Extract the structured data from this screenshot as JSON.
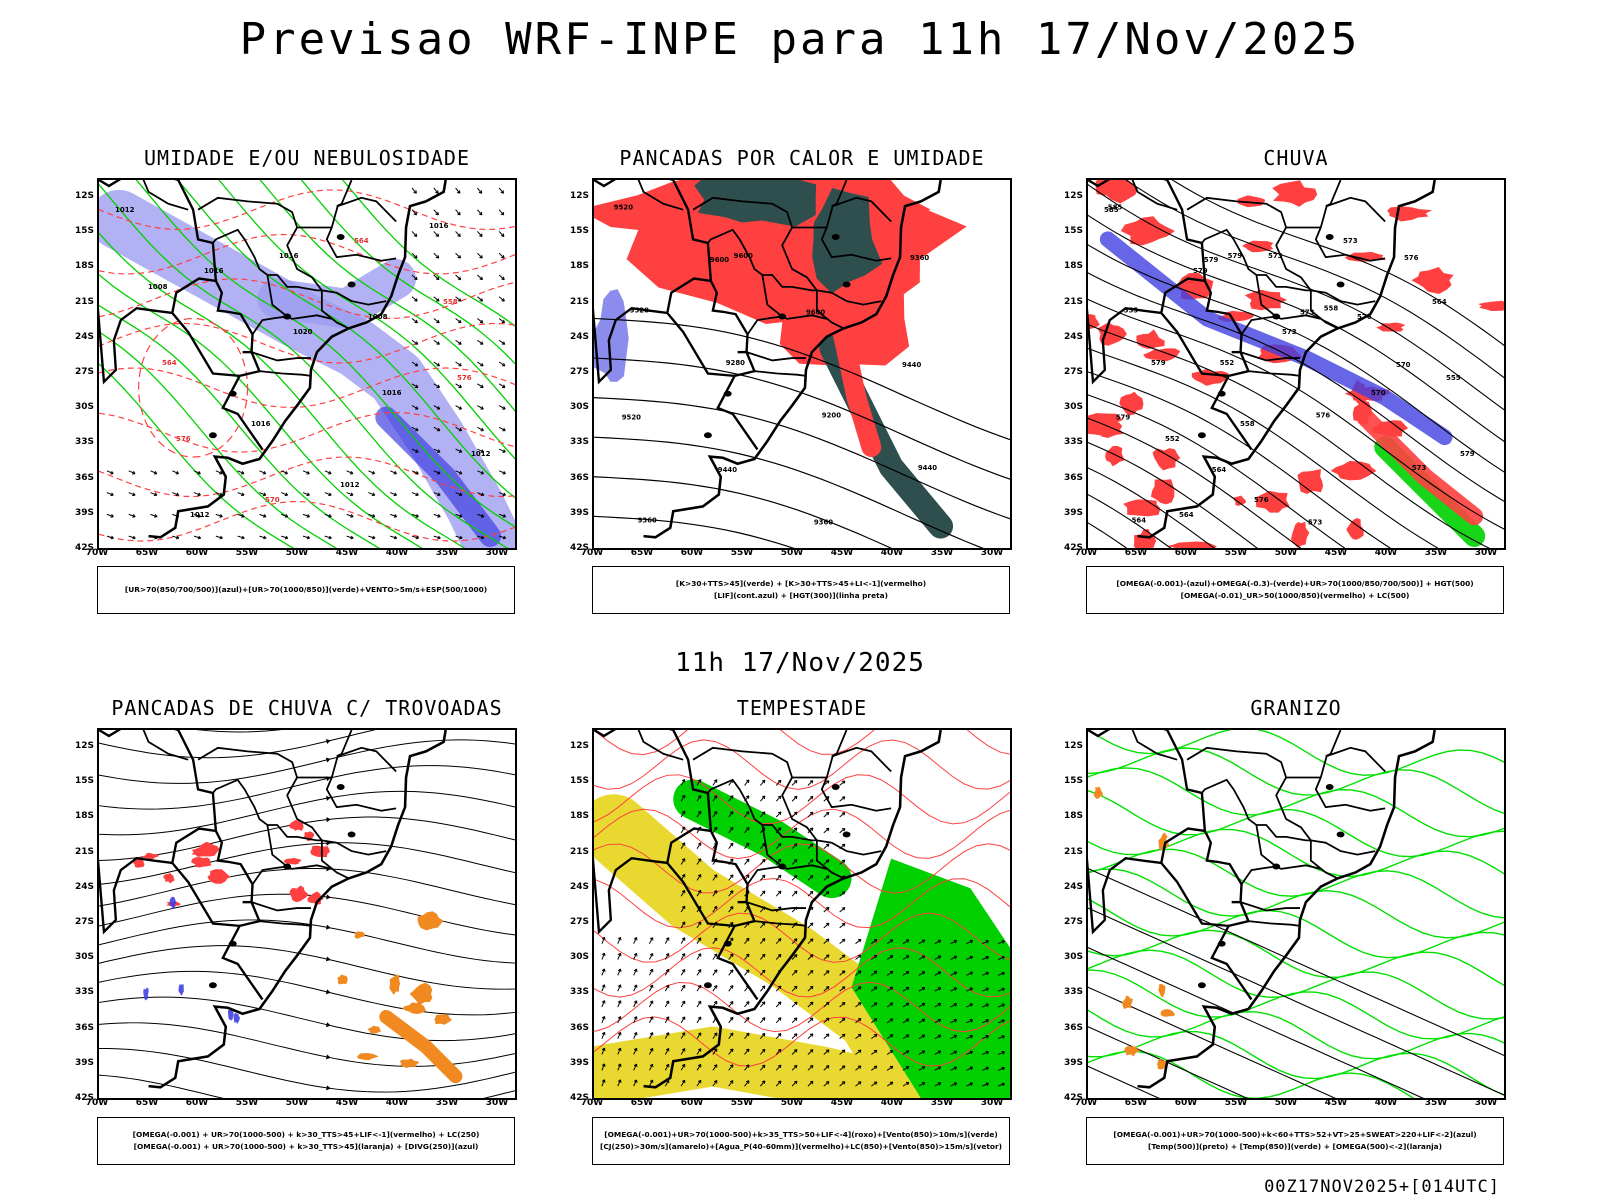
{
  "header": {
    "title": "Previsao WRF-INPE  para 11h 17/Nov/2025"
  },
  "subheader": {
    "time": "11h 17/Nov/2025"
  },
  "footer": {
    "run": "00Z17NOV2025+[014UTC]"
  },
  "axes": {
    "lat_labels": [
      "12S",
      "15S",
      "18S",
      "21S",
      "24S",
      "27S",
      "30S",
      "33S",
      "36S",
      "39S",
      "42S"
    ],
    "lon_labels": [
      "70W",
      "65W",
      "60W",
      "55W",
      "50W",
      "45W",
      "40W",
      "35W",
      "30W"
    ]
  },
  "panels": [
    {
      "title": "UMIDADE E/OU NEBULOSIDADE",
      "legend": [
        "[UR>70(850/700/500)](azul)+[UR>70(1000/850)](verde)+VENTO>5m/s+ESP(500/1000)"
      ],
      "labels": [
        "1012",
        "1016",
        "1020",
        "1016",
        "1012",
        "1012",
        "1016",
        "1008",
        "576",
        "576",
        "570",
        "564",
        "558",
        "564",
        "1016",
        "1012",
        "1016",
        "1008"
      ]
    },
    {
      "title": "PANCADAS POR CALOR E UMIDADE",
      "legend": [
        "[K>30+TTS>45](verde) + [K>30+TTS>45+LI<-1](vermelho)",
        "[LIF](cont.azul) + [HGT(300)](linha preta)"
      ],
      "labels": [
        "9520",
        "9600",
        "9600",
        "9440",
        "9520",
        "9440",
        "9360",
        "9360",
        "9520",
        "9280",
        "9200",
        "9440",
        "9360",
        "9600"
      ]
    },
    {
      "title": "CHUVA",
      "legend": [
        "[OMEGA(-0.001)-(azul)+OMEGA(-0.3)-(verde)+UR>70(1000/850/700/500)] + HGT(500)",
        "[OMEGA(-0.01)_UR>50(1000/850)(vermelho) + LC(500)"
      ],
      "labels": [
        "585",
        "579",
        "573",
        "570",
        "579",
        "564",
        "573",
        "576",
        "555",
        "552",
        "576",
        "573",
        "564",
        "579",
        "558"
      ]
    },
    {
      "title": "PANCADAS DE CHUVA C/ TROVOADAS",
      "legend": [
        "[OMEGA(-0.001) + UR>70(1000-500) + k>30_TTS>45+LIF<-1](vermelho) + LC(250)",
        "[OMEGA(-0.001) + UR>70(1000-500) + k>30_TTS>45](laranja) + [DIVG(250)](azul)"
      ],
      "labels": []
    },
    {
      "title": "TEMPESTADE",
      "legend": [
        "[OMEGA(-0.001)+UR>70(1000-500)+k>35_TTS>50+LIF<-4](roxo)+[Vento(850)>10m/s](verde)",
        "[CJ(250)>30m/s](amarelo)+[Agua_P(40-60mm)](vermelho)+LC(850)+[Vento(850)>15m/s](vetor)"
      ],
      "labels": []
    },
    {
      "title": "GRANIZO",
      "legend": [
        "[OMEGA(-0.001)+UR>70(1000-500)+k<60+TTS>52+VT>25+SWEAT>220+LIF<-2](azul)",
        "[Temp(500)](preto) + [Temp(850)](verde) + [OMEGA(500)<-2](laranja)"
      ],
      "labels": []
    }
  ],
  "colors": {
    "blue_fill": "#9e9ef0",
    "blue_dark": "#4040e0",
    "green": "#00d000",
    "red": "#ff4040",
    "dark_teal": "#2f4f4f",
    "orange": "#f08a20",
    "yellow": "#e8d830",
    "bright_green": "#00e000"
  }
}
